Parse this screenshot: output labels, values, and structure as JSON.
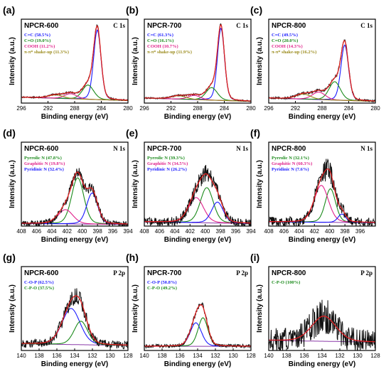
{
  "chart_data": [
    {
      "id": "a",
      "panel_label": "(a)",
      "sample": "NPCR-600",
      "core": "C 1s",
      "type": "line",
      "xlabel": "Binding energy (eV)",
      "ylabel": "Intensity (a.u.)",
      "xlim": [
        296,
        280
      ],
      "xticks": [
        296,
        292,
        288,
        284,
        280
      ],
      "noise": 0.008,
      "grid": false,
      "legend": [
        {
          "text": "C=C (58.5%)",
          "color": "#1a1aff"
        },
        {
          "text": "C=O (19.0%)",
          "color": "#1a8a1a"
        },
        {
          "text": "COOH (11.2%)",
          "color": "#e0208a"
        },
        {
          "text": "π-π* shake-up (11.3%)",
          "color": "#9a8a1a"
        }
      ],
      "background": {
        "left": 0.07,
        "right": 0.03
      },
      "peaks": [
        {
          "center": 284.6,
          "height": 0.83,
          "fwhm": 1.3,
          "color": "#1a1aff"
        },
        {
          "center": 286.0,
          "height": 0.17,
          "fwhm": 2.0,
          "color": "#1a8a1a"
        },
        {
          "center": 288.6,
          "height": 0.06,
          "fwhm": 2.2,
          "color": "#e0208a"
        },
        {
          "center": 290.8,
          "height": 0.04,
          "fwhm": 2.6,
          "color": "#9a8a1a"
        }
      ]
    },
    {
      "id": "b",
      "panel_label": "(b)",
      "sample": "NPCR-700",
      "core": "C 1s",
      "type": "line",
      "xlabel": "Binding energy (eV)",
      "ylabel": "Intensity (a.u.)",
      "xlim": [
        296,
        280
      ],
      "xticks": [
        296,
        292,
        288,
        284,
        280
      ],
      "noise": 0.008,
      "grid": false,
      "legend": [
        {
          "text": "C=C (61.3%)",
          "color": "#1a1aff"
        },
        {
          "text": "C=O (16.1%)",
          "color": "#1a8a1a"
        },
        {
          "text": "COOH (10.7%)",
          "color": "#e0208a"
        },
        {
          "text": "π-π* shake-up (11.9%)",
          "color": "#9a8a1a"
        }
      ],
      "background": {
        "left": 0.06,
        "right": 0.02
      },
      "peaks": [
        {
          "center": 284.5,
          "height": 0.86,
          "fwhm": 1.25,
          "color": "#1a1aff"
        },
        {
          "center": 285.9,
          "height": 0.15,
          "fwhm": 2.0,
          "color": "#1a8a1a"
        },
        {
          "center": 288.5,
          "height": 0.05,
          "fwhm": 2.2,
          "color": "#e0208a"
        },
        {
          "center": 290.8,
          "height": 0.04,
          "fwhm": 2.6,
          "color": "#9a8a1a"
        }
      ]
    },
    {
      "id": "c",
      "panel_label": "(c)",
      "sample": "NPCR-800",
      "core": "C 1s",
      "type": "line",
      "xlabel": "Binding energy (eV)",
      "ylabel": "Intensity (a.u.)",
      "xlim": [
        296,
        280
      ],
      "xticks": [
        296,
        292,
        288,
        284,
        280
      ],
      "noise": 0.012,
      "grid": false,
      "legend": [
        {
          "text": "C=C (49.5%)",
          "color": "#1a1aff"
        },
        {
          "text": "C=O (20.0%)",
          "color": "#1a8a1a"
        },
        {
          "text": "COOH (14.3%)",
          "color": "#e0208a"
        },
        {
          "text": "π-π* shake-up (16.2%)",
          "color": "#9a8a1a"
        }
      ],
      "background": {
        "left": 0.06,
        "right": 0.02
      },
      "peaks": [
        {
          "center": 284.6,
          "height": 0.66,
          "fwhm": 1.35,
          "color": "#1a1aff"
        },
        {
          "center": 286.1,
          "height": 0.22,
          "fwhm": 2.0,
          "color": "#1a8a1a"
        },
        {
          "center": 288.5,
          "height": 0.09,
          "fwhm": 2.3,
          "color": "#e0208a"
        },
        {
          "center": 290.8,
          "height": 0.06,
          "fwhm": 2.6,
          "color": "#9a8a1a"
        }
      ]
    },
    {
      "id": "d",
      "panel_label": "(d)",
      "sample": "NPCR-600",
      "core": "N 1s",
      "type": "line",
      "xlabel": "Binding energy (eV)",
      "ylabel": "Intensity (a.u.)",
      "xlim": [
        408,
        394
      ],
      "xticks": [
        408,
        406,
        404,
        402,
        400,
        398,
        396,
        394
      ],
      "noise": 0.035,
      "grid": false,
      "legend": [
        {
          "text": "Pyrrolic N (47.8%)",
          "color": "#1a8a1a"
        },
        {
          "text": "Graphitic N (19.8%)",
          "color": "#e0208a"
        },
        {
          "text": "Pyridinic N (32.4%)",
          "color": "#1a1aff"
        }
      ],
      "background": {
        "left": 0.03,
        "right": 0.02
      },
      "peaks": [
        {
          "center": 400.6,
          "height": 0.55,
          "fwhm": 1.9,
          "color": "#1a8a1a"
        },
        {
          "center": 402.2,
          "height": 0.17,
          "fwhm": 2.3,
          "color": "#e0208a"
        },
        {
          "center": 398.7,
          "height": 0.37,
          "fwhm": 1.7,
          "color": "#1a1aff"
        }
      ]
    },
    {
      "id": "e",
      "panel_label": "(e)",
      "sample": "NPCR-700",
      "core": "N 1s",
      "type": "line",
      "xlabel": "Binding energy (eV)",
      "ylabel": "Intensity (a.u.)",
      "xlim": [
        408,
        394
      ],
      "xticks": [
        408,
        406,
        404,
        402,
        400,
        398,
        396,
        394
      ],
      "noise": 0.05,
      "grid": false,
      "legend": [
        {
          "text": "Pyrrolic N (39.3%)",
          "color": "#1a8a1a"
        },
        {
          "text": "Graphitic N (34.5%)",
          "color": "#e0208a"
        },
        {
          "text": "Pyridinic N (26.2%)",
          "color": "#1a1aff"
        }
      ],
      "background": {
        "left": 0.05,
        "right": 0.03
      },
      "peaks": [
        {
          "center": 399.8,
          "height": 0.42,
          "fwhm": 2.0,
          "color": "#1a8a1a"
        },
        {
          "center": 401.2,
          "height": 0.3,
          "fwhm": 2.3,
          "color": "#e0208a"
        },
        {
          "center": 398.4,
          "height": 0.25,
          "fwhm": 1.8,
          "color": "#1a1aff"
        }
      ]
    },
    {
      "id": "f",
      "panel_label": "(f)",
      "sample": "NPCR-800",
      "core": "N 1s",
      "type": "line",
      "xlabel": "Binding energy (eV)",
      "ylabel": "Intensity (a.u.)",
      "xlim": [
        408,
        394
      ],
      "xticks": [
        408,
        406,
        404,
        402,
        400,
        398,
        396
      ],
      "noise": 0.06,
      "grid": false,
      "legend": [
        {
          "text": "Pyrrolic N (32.1%)",
          "color": "#1a8a1a"
        },
        {
          "text": "Graphitic N (60.3%)",
          "color": "#e0208a"
        },
        {
          "text": "Pyridinic N (7.6%)",
          "color": "#1a1aff"
        }
      ],
      "background": {
        "left": 0.05,
        "right": 0.04
      },
      "peaks": [
        {
          "center": 399.9,
          "height": 0.4,
          "fwhm": 1.6,
          "color": "#1a8a1a"
        },
        {
          "center": 401.1,
          "height": 0.44,
          "fwhm": 2.2,
          "color": "#e0208a"
        },
        {
          "center": 398.4,
          "height": 0.1,
          "fwhm": 1.2,
          "color": "#1a1aff"
        }
      ]
    },
    {
      "id": "g",
      "panel_label": "(g)",
      "sample": "NPCR-600",
      "core": "P 2p",
      "type": "line",
      "xlabel": "Binding energy (eV)",
      "ylabel": "Intensity (a.u.)",
      "xlim": [
        140,
        128
      ],
      "xticks": [
        140,
        138,
        136,
        134,
        132,
        130,
        128
      ],
      "noise": 0.05,
      "grid": false,
      "legend": [
        {
          "text": "C-O-P (62.5%)",
          "color": "#1a1aff"
        },
        {
          "text": "C-P-O (37.5%)",
          "color": "#1a8a1a"
        }
      ],
      "background": {
        "left": 0.08,
        "right": 0.06
      },
      "peaks": [
        {
          "center": 134.4,
          "height": 0.43,
          "fwhm": 2.4,
          "color": "#1a1aff"
        },
        {
          "center": 133.3,
          "height": 0.28,
          "fwhm": 1.8,
          "color": "#1a8a1a"
        }
      ]
    },
    {
      "id": "h",
      "panel_label": "(h)",
      "sample": "NPCR-700",
      "core": "P 2p",
      "type": "line",
      "xlabel": "Binding energy (eV)",
      "ylabel": "Intensity (a.u.)",
      "xlim": [
        140,
        128
      ],
      "xticks": [
        140,
        138,
        136,
        134,
        132,
        130,
        128
      ],
      "noise": 0.02,
      "grid": false,
      "legend": [
        {
          "text": "C-O-P (50.8%)",
          "color": "#1a1aff"
        },
        {
          "text": "C-P-O (49.2%)",
          "color": "#1a8a1a"
        }
      ],
      "background": {
        "left": 0.05,
        "right": 0.05
      },
      "peaks": [
        {
          "center": 134.2,
          "height": 0.28,
          "fwhm": 1.5,
          "color": "#1a1aff"
        },
        {
          "center": 133.4,
          "height": 0.34,
          "fwhm": 1.3,
          "color": "#1a8a1a"
        }
      ]
    },
    {
      "id": "i",
      "panel_label": "(i)",
      "sample": "NPCR-800",
      "core": "P 2p",
      "type": "line",
      "xlabel": "Binding energy (eV)",
      "ylabel": "Intensity (a.u.)",
      "xlim": [
        140,
        128
      ],
      "xticks": [
        140,
        138,
        136,
        134,
        132,
        130,
        128
      ],
      "noise": 0.14,
      "grid": false,
      "legend": [
        {
          "text": "C-P-O (100%)",
          "color": "#1a8a1a"
        }
      ],
      "background": {
        "left": 0.12,
        "right": 0.1
      },
      "peaks": [
        {
          "center": 133.8,
          "height": 0.3,
          "fwhm": 3.2,
          "color": "#1a1aff"
        }
      ]
    }
  ]
}
